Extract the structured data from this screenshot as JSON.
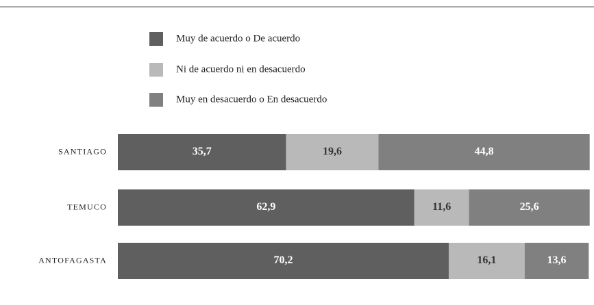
{
  "chart_data": {
    "type": "stacked_bar_horizontal",
    "categories": [
      "SANTIAGO",
      "TEMUCO",
      "ANTOFAGASTA"
    ],
    "series": [
      {
        "name": "Muy de acuerdo o De acuerdo",
        "color": "#5f5f5f",
        "values": [
          35.7,
          62.9,
          70.2
        ],
        "value_labels": [
          "35,7",
          "62,9",
          "70,2"
        ]
      },
      {
        "name": "Ni de acuerdo ni en desacuerdo",
        "color": "#b9b9b9",
        "values": [
          19.6,
          11.6,
          16.1
        ],
        "value_labels": [
          "19,6",
          "11,6",
          "16,1"
        ]
      },
      {
        "name": "Muy en desacuerdo o En desacuerdo",
        "color": "#808080",
        "values": [
          44.8,
          25.6,
          13.6
        ],
        "value_labels": [
          "44,8",
          "25,6",
          "13,6"
        ]
      }
    ],
    "xlim": [
      0,
      100
    ]
  }
}
